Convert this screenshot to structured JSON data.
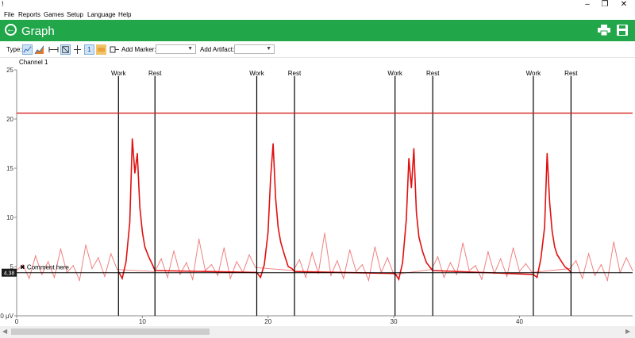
{
  "window": {
    "app_icon": "!",
    "controls": [
      "–",
      "❐",
      "✕"
    ]
  },
  "menu": [
    "File",
    "Reports",
    "Games",
    "Setup",
    "Language",
    "Help"
  ],
  "header": {
    "title": "Graph",
    "back_icon": "back-arrow-icon",
    "print_icon": "printer-icon",
    "save_icon": "save-icon",
    "color": "#21a64a"
  },
  "toolbar": {
    "type_label": "Type:",
    "add_marker_label": "Add Marker:",
    "add_marker_value": "",
    "add_artifact_label": "Add Artifact:",
    "add_artifact_value": "",
    "zoom_badge": "1"
  },
  "channel_label": "Channel 1",
  "chart_data": {
    "type": "line",
    "xlim": [
      0,
      49
    ],
    "ylim": [
      0,
      25
    ],
    "x_ticks": [
      0,
      10,
      20,
      30,
      40
    ],
    "y_ticks": [
      0,
      5,
      10,
      15,
      20,
      25
    ],
    "y_tick_labels": [
      "0 μV",
      "5",
      "10",
      "15",
      "20",
      "25"
    ],
    "threshold_line": 20.6,
    "threshold_color": "#d81e1e",
    "baseline_value": 4.38,
    "baseline_label": "4.38",
    "annotation": "Comment here",
    "markers": [
      {
        "x": 8.1,
        "label": "Work"
      },
      {
        "x": 11.0,
        "label": "Rest"
      },
      {
        "x": 19.1,
        "label": "Work"
      },
      {
        "x": 22.1,
        "label": "Rest"
      },
      {
        "x": 30.1,
        "label": "Work"
      },
      {
        "x": 33.1,
        "label": "Rest"
      },
      {
        "x": 41.1,
        "label": "Work"
      },
      {
        "x": 44.1,
        "label": "Rest"
      }
    ],
    "series": [
      {
        "color": "#f08080",
        "x": [
          0,
          0.5,
          1,
          1.5,
          2,
          2.5,
          3,
          3.5,
          4,
          4.5,
          5,
          5.5,
          6,
          6.5,
          7,
          7.5,
          8,
          11,
          11.5,
          12,
          12.5,
          13,
          13.5,
          14,
          14.5,
          15,
          15.5,
          16,
          16.5,
          17,
          17.5,
          18,
          18.5,
          19,
          22,
          22.5,
          23,
          23.5,
          24,
          24.5,
          25,
          25.5,
          26,
          26.5,
          27,
          27.5,
          28,
          28.5,
          29,
          29.5,
          30,
          33,
          33.5,
          34,
          34.5,
          35,
          35.5,
          36,
          36.5,
          37,
          37.5,
          38,
          38.5,
          39,
          39.5,
          40,
          40.5,
          41,
          44,
          44.5,
          45,
          45.5,
          46,
          46.5,
          47,
          47.5,
          48,
          48.5,
          49
        ],
        "values": [
          4.6,
          5.2,
          3.8,
          6.1,
          4.2,
          5.5,
          3.9,
          6.8,
          4.4,
          5.1,
          3.6,
          7.2,
          4.8,
          5.9,
          4.0,
          6.3,
          4.7,
          4.5,
          5.8,
          3.9,
          6.6,
          4.2,
          5.4,
          3.7,
          7.8,
          4.6,
          5.2,
          4.1,
          6.9,
          3.8,
          5.5,
          4.4,
          6.2,
          4.9,
          4.6,
          5.7,
          3.9,
          6.4,
          4.3,
          8.4,
          4.1,
          5.6,
          3.8,
          6.7,
          4.5,
          5.2,
          3.6,
          7.0,
          4.4,
          5.9,
          4.2,
          4.7,
          6.0,
          3.9,
          5.4,
          4.2,
          7.4,
          4.6,
          5.1,
          3.7,
          6.5,
          4.3,
          5.8,
          4.0,
          6.9,
          4.5,
          5.3,
          4.4,
          4.8,
          5.6,
          3.8,
          6.3,
          4.1,
          5.2,
          3.6,
          7.5,
          4.4,
          5.9,
          4.6
        ]
      },
      {
        "color": "#e01010",
        "x": [
          8.1,
          8.4,
          8.7,
          9.0,
          9.2,
          9.4,
          9.6,
          9.8,
          10.0,
          10.2,
          10.5,
          10.8,
          11.0,
          19.1,
          19.4,
          19.7,
          20.0,
          20.2,
          20.4,
          20.6,
          20.8,
          21.0,
          21.3,
          21.6,
          21.9,
          22.1,
          30.1,
          30.4,
          30.7,
          31.0,
          31.2,
          31.4,
          31.6,
          31.8,
          32.0,
          32.3,
          32.6,
          32.9,
          33.1,
          41.1,
          41.4,
          41.7,
          42.0,
          42.2,
          42.4,
          42.6,
          42.8,
          43.0,
          43.3,
          43.6,
          43.9,
          44.1
        ],
        "values": [
          4.5,
          3.8,
          5.5,
          9.5,
          18.0,
          14.5,
          16.5,
          11.0,
          8.5,
          7.0,
          6.0,
          5.2,
          4.6,
          4.4,
          3.9,
          5.2,
          8.5,
          14.0,
          17.5,
          12.0,
          9.0,
          7.5,
          6.2,
          5.0,
          4.8,
          4.5,
          4.3,
          3.7,
          5.4,
          9.8,
          16.0,
          13.0,
          17.0,
          10.5,
          8.0,
          6.5,
          5.4,
          4.9,
          4.6,
          4.2,
          3.9,
          5.8,
          9.0,
          16.5,
          11.5,
          8.6,
          7.0,
          6.2,
          5.6,
          5.0,
          4.7,
          4.4
        ]
      }
    ]
  }
}
